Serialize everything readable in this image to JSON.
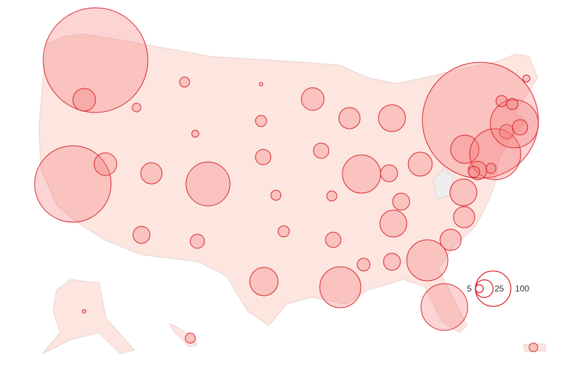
{
  "map": {
    "land_color": "#fde6e0",
    "no_data_color": "#eeeeee",
    "bubble_fill": "#f57878",
    "bubble_stroke": "#d9242b",
    "bubbles": [
      {
        "value": 876
      },
      {
        "value": 41
      },
      {
        "value": 467
      },
      {
        "value": 41
      },
      {
        "value": 6
      },
      {
        "value": 8
      },
      {
        "value": 4
      },
      {
        "value": 36
      },
      {
        "value": 154
      },
      {
        "value": 23
      },
      {
        "value": 16
      },
      {
        "value": 1
      },
      {
        "value": 10
      },
      {
        "value": 19
      },
      {
        "value": 8
      },
      {
        "value": 10
      },
      {
        "value": 64
      },
      {
        "value": 41
      },
      {
        "value": 19
      },
      {
        "value": 8
      },
      {
        "value": 19
      },
      {
        "value": 135
      },
      {
        "value": 36
      },
      {
        "value": 117
      },
      {
        "value": 58
      },
      {
        "value": 23
      },
      {
        "value": 46
      },
      {
        "value": 23
      },
      {
        "value": 58
      },
      {
        "value": 13
      },
      {
        "value": 23
      },
      {
        "value": 135
      },
      {
        "value": 174
      },
      {
        "value": 36
      },
      {
        "value": 36
      },
      {
        "value": 58
      },
      {
        "value": 1076
      },
      {
        "value": 64
      },
      {
        "value": 207
      },
      {
        "value": 27
      },
      {
        "value": 8
      },
      {
        "value": 10
      },
      {
        "value": 16
      },
      {
        "value": 185
      },
      {
        "value": 19
      },
      {
        "value": 10
      },
      {
        "value": 10
      },
      {
        "value": 4
      },
      {
        "value": 1
      },
      {
        "value": 8
      },
      {
        "value": 6
      }
    ]
  },
  "legend": {
    "items": [
      {
        "value": 5,
        "label": "5"
      },
      {
        "value": 25,
        "label": "25"
      },
      {
        "value": 100,
        "label": "100"
      }
    ]
  }
}
